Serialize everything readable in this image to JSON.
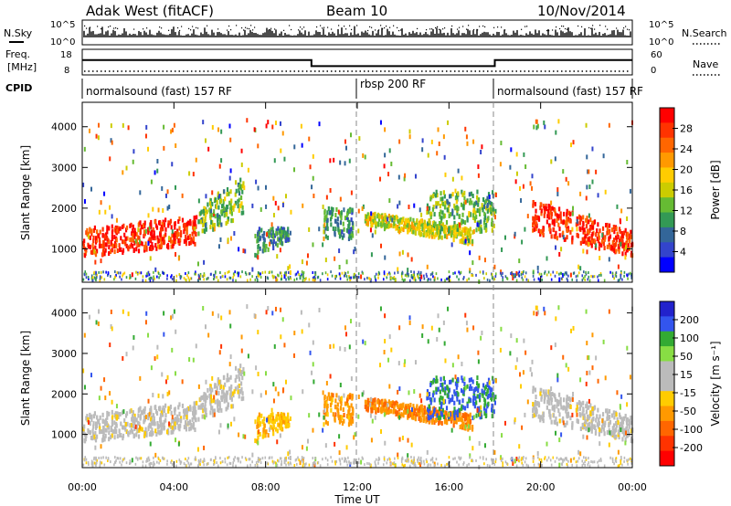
{
  "header": {
    "station": "Adak West (fitACF)",
    "beam": "Beam 10",
    "date": "10/Nov/2014"
  },
  "noise_panel": {
    "left_label": "N.Sky",
    "right_label": "N.Search",
    "left_ticks": [
      "10^5",
      "10^0"
    ],
    "right_ticks": [
      "10^5",
      "10^0"
    ]
  },
  "freq_panel": {
    "left_label_1": "Freq.",
    "left_label_2": "[MHz]",
    "right_label": "Nave",
    "left_ticks": [
      "18",
      "8"
    ],
    "right_ticks": [
      "60",
      "0"
    ]
  },
  "cpid_panel": {
    "label": "CPID",
    "modes": [
      {
        "name": "normalsound (fast) 157 RF",
        "start_h": 0,
        "end_h": 12
      },
      {
        "name": "rbsp 200 RF",
        "start_h": 12,
        "end_h": 18
      },
      {
        "name": "normalsound (fast) 157 RF",
        "start_h": 18,
        "end_h": 24
      }
    ]
  },
  "axes": {
    "ylabel": "Slant Range [km]",
    "xlabel": "Time UT",
    "xticks": [
      "00:00",
      "04:00",
      "08:00",
      "12:00",
      "16:00",
      "20:00",
      "00:00"
    ],
    "yticks": [
      "1000",
      "2000",
      "3000",
      "4000"
    ]
  },
  "colorbars": {
    "power": {
      "label": "Power [dB]",
      "ticks": [
        "28",
        "24",
        "20",
        "16",
        "12",
        "8",
        "4"
      ],
      "colors": [
        "#ff0000",
        "#ff3300",
        "#ff6600",
        "#ff9900",
        "#ffcc00",
        "#cccc00",
        "#66bb33",
        "#339955",
        "#336699",
        "#3344cc",
        "#0000ff"
      ]
    },
    "velocity": {
      "label": "Velocity [m s⁻¹]",
      "ticks": [
        "200",
        "100",
        "50",
        "15",
        "-15",
        "-50",
        "-100",
        "-200"
      ],
      "colors": [
        "#2222cc",
        "#3355ee",
        "#33aa33",
        "#88dd44",
        "#bbbbbb",
        "#bbbbbb",
        "#ffcc00",
        "#ff9900",
        "#ff6600",
        "#ff3300",
        "#ff0000"
      ]
    }
  },
  "chart_data": {
    "type": "heatmap",
    "x_range_hours": [
      0,
      24
    ],
    "y_range_km": [
      180,
      4600
    ],
    "frequency_mhz": [
      {
        "start_h": 0,
        "end_h": 10,
        "value": 14
      },
      {
        "start_h": 10,
        "end_h": 18,
        "value": 11
      },
      {
        "start_h": 18,
        "end_h": 24,
        "value": 14
      }
    ],
    "scatter_regions": [
      {
        "t0": 0,
        "t1": 5,
        "r0": 800,
        "r1": 1500,
        "r0_end": 1100,
        "r1_end": 1800,
        "power": 28,
        "velocity": 0
      },
      {
        "t0": 5,
        "t1": 7,
        "r0": 1300,
        "r1": 2000,
        "r0_end": 1800,
        "r1_end": 2800,
        "power": 12,
        "velocity": 0
      },
      {
        "t0": 7.5,
        "t1": 9,
        "r0": 800,
        "r1": 1500,
        "r0_end": 1200,
        "r1_end": 1500,
        "power": 8,
        "velocity": -60
      },
      {
        "t0": 10.5,
        "t1": 11.8,
        "r0": 1200,
        "r1": 2000,
        "r0_end": 1200,
        "r1_end": 2000,
        "power": 8,
        "velocity": -100
      },
      {
        "t0": 12.3,
        "t1": 17,
        "r0": 1600,
        "r1": 1900,
        "r0_end": 1100,
        "r1_end": 1500,
        "power": 16,
        "velocity": -120
      },
      {
        "t0": 15,
        "t1": 18,
        "r0": 1400,
        "r1": 2400,
        "r0_end": 1400,
        "r1_end": 2400,
        "power": 12,
        "velocity": 180
      },
      {
        "t0": 19.6,
        "t1": 24,
        "r0": 1400,
        "r1": 2200,
        "r0_end": 800,
        "r1_end": 1400,
        "power": 28,
        "velocity": 0
      }
    ]
  }
}
